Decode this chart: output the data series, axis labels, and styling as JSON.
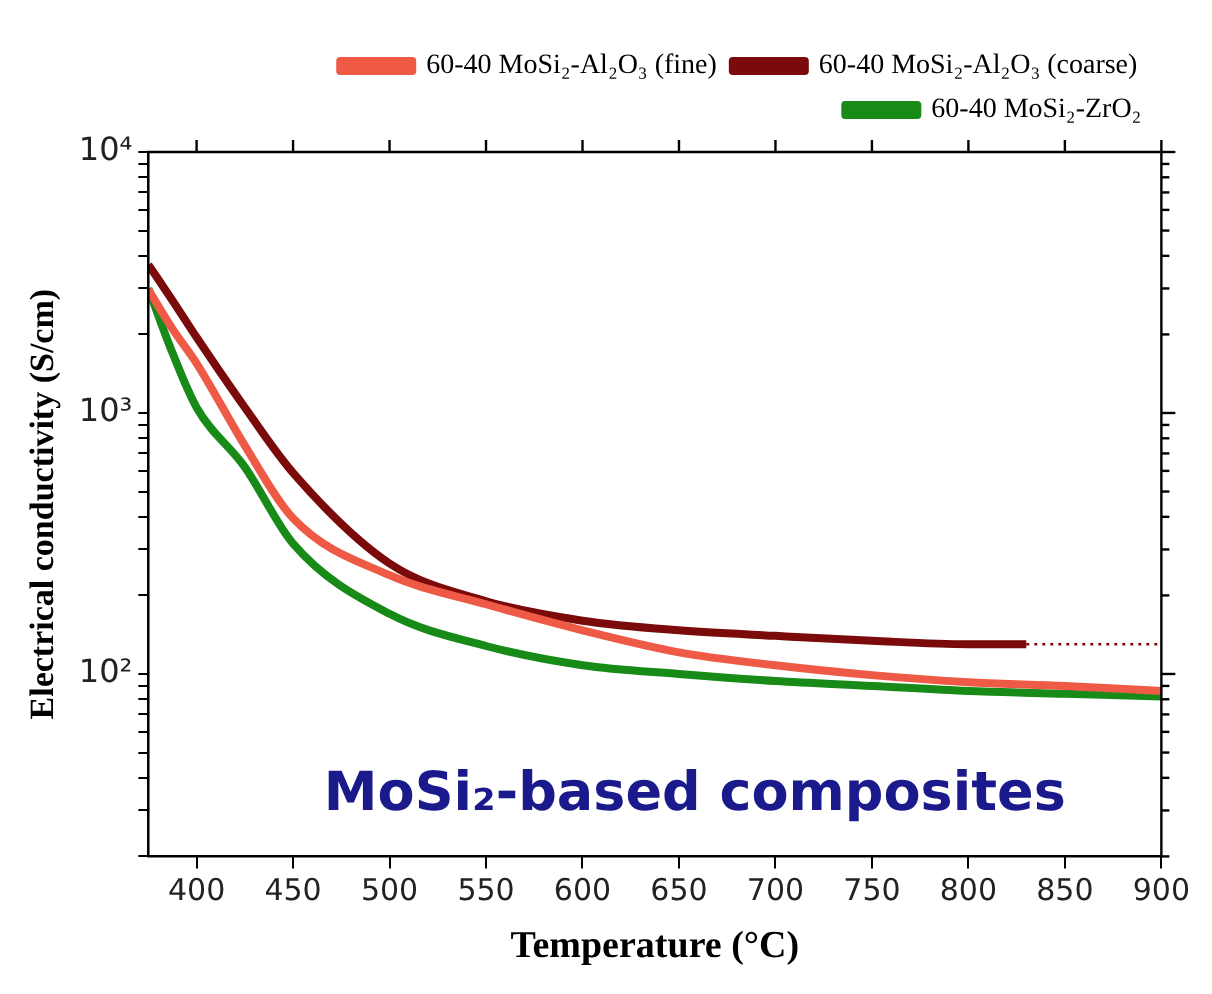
{
  "chart_data": {
    "type": "line",
    "xlabel": "Temperature (°C)",
    "ylabel": "Electrical conductivity (S/cm)",
    "annotations": [
      "MoSi₂-based composites"
    ],
    "x": [
      375,
      387.5,
      400,
      425,
      450,
      500,
      550,
      600,
      650,
      700,
      750,
      800,
      850,
      900
    ],
    "series": [
      {
        "name": "60-40 MoSi₂-Al₂O₃ (fine)",
        "color": "#ee5a45",
        "values": [
          2970,
          2100,
          1550,
          750,
          395,
          239,
          185,
          147,
          121,
          108,
          99,
          93,
          90,
          86
        ]
      },
      {
        "name": "60-40 MoSi₂-Al₂O₃ (coarse)",
        "color": "#7b0a0a",
        "x": [
          375,
          387.5,
          400,
          425,
          450,
          500,
          550,
          600,
          650,
          700,
          750,
          800,
          830
        ],
        "values": [
          3700,
          2700,
          1950,
          1050,
          590,
          265,
          190,
          160,
          147,
          140,
          134,
          130,
          130
        ]
      },
      {
        "color": "#7b0a0a",
        "x": [
          830,
          900
        ],
        "values": [
          130,
          130
        ],
        "line_style": "dotted"
      },
      {
        "name": "60-40 MoSi₂-ZrO₂",
        "color": "#188a18",
        "values": [
          3000,
          1700,
          1050,
          620,
          316,
          170,
          128,
          108,
          100,
          94,
          90,
          86,
          84,
          82
        ]
      }
    ],
    "log": "y",
    "xlim": [
      375,
      900
    ],
    "ylim": [
      20,
      10000
    ],
    "xticks": [
      400,
      450,
      500,
      550,
      600,
      650,
      700,
      750,
      800,
      850,
      900
    ],
    "yticks": [
      {
        "value": 20,
        "label": null
      },
      {
        "value": 30,
        "label": null
      },
      {
        "value": 40,
        "label": null
      },
      {
        "value": 50,
        "label": null
      },
      {
        "value": 60,
        "label": null
      },
      {
        "value": 70,
        "label": null
      },
      {
        "value": 80,
        "label": null
      },
      {
        "value": 90,
        "label": null
      },
      {
        "value": 100,
        "label": "10²"
      },
      {
        "value": 200,
        "label": null
      },
      {
        "value": 300,
        "label": null
      },
      {
        "value": 400,
        "label": null
      },
      {
        "value": 500,
        "label": null
      },
      {
        "value": 600,
        "label": null
      },
      {
        "value": 700,
        "label": null
      },
      {
        "value": 800,
        "label": null
      },
      {
        "value": 900,
        "label": null
      },
      {
        "value": 1000,
        "label": "10³"
      },
      {
        "value": 2000,
        "label": null
      },
      {
        "value": 3000,
        "label": null
      },
      {
        "value": 4000,
        "label": null
      },
      {
        "value": 5000,
        "label": null
      },
      {
        "value": 6000,
        "label": null
      },
      {
        "value": 7000,
        "label": null
      },
      {
        "value": 8000,
        "label": null
      },
      {
        "value": 9000,
        "label": null
      },
      {
        "value": 10000,
        "label": "10⁴"
      }
    ],
    "grid": false,
    "legend": "top right",
    "marker": "none",
    "line_style": "solid"
  }
}
